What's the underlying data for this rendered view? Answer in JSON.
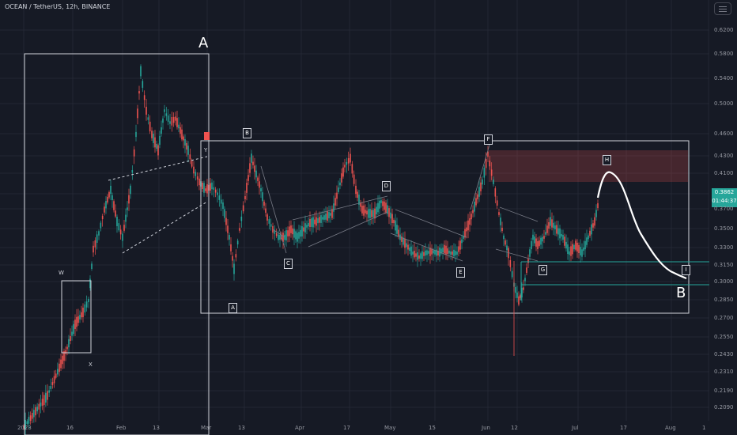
{
  "header": {
    "title": "OCEAN / TetherUS, 12h, BINANCE"
  },
  "chart_data": {
    "type": "candlestick",
    "pair": "OCEAN / TetherUS",
    "interval": "12h",
    "exchange": "BINANCE",
    "price_axis": [
      "0.6200",
      "0.5800",
      "0.5400",
      "0.5000",
      "0.4600",
      "0.4300",
      "0.4100",
      "0.3862",
      "0.3700",
      "0.3500",
      "0.3300",
      "0.3150",
      "0.3000",
      "0.2850",
      "0.2700",
      "0.2550",
      "0.2430",
      "0.2310",
      "0.2190",
      "0.2090"
    ],
    "time_axis": [
      "2023",
      "16",
      "Feb",
      "13",
      "Mar",
      "13",
      "Apr",
      "17",
      "May",
      "15",
      "Jun",
      "12",
      "Jul",
      "17",
      "Aug",
      "1"
    ],
    "current_price": "0.3862",
    "countdown": "01:44:37",
    "annotations": {
      "zone_a": "A",
      "zone_b": "B",
      "points": [
        "W",
        "X",
        "Y",
        "A",
        "B",
        "C",
        "D",
        "E",
        "F",
        "G",
        "H",
        "I"
      ]
    },
    "colors": {
      "up": "#26a69a",
      "down": "#ef5350",
      "background": "#161a25",
      "grid": "#232733",
      "resistance_zone": "#ef5350",
      "support_lines": "#26a69a",
      "projection": "#ffffff"
    }
  },
  "toolbar": {
    "menu_icon": "menu-icon"
  }
}
